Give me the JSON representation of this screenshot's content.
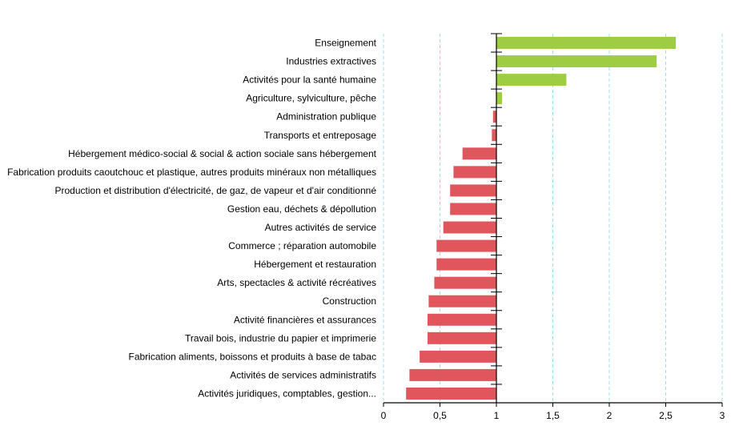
{
  "chart_data": {
    "type": "bar",
    "orientation": "horizontal",
    "title": "",
    "xlabel": "",
    "ylabel": "",
    "baseline": 1,
    "xlim": [
      0,
      3
    ],
    "x_ticks": [
      0,
      0.5,
      1,
      1.5,
      2,
      2.5,
      3
    ],
    "x_tick_labels": [
      "0",
      "0,5",
      "1",
      "1,5",
      "2",
      "2,5",
      "3"
    ],
    "grid": "vertical dashed",
    "legend": "none",
    "colors": {
      "above_baseline": "#9ecd44",
      "below_baseline": "#e0565c",
      "grid": "#9be0f0",
      "axis": "#000000"
    },
    "categories": [
      "Enseignement",
      "Industries extractives",
      "Activités pour la santé humaine",
      "Agriculture, sylviculture, pêche",
      "Administration publique",
      "Transports et entreposage",
      "Hébergement médico-social & social & action sociale sans hébergement",
      "Fabrication produits caoutchouc et plastique, autres produits minéraux non métalliques",
      "Production et distribution d'électricité, de gaz, de vapeur et d'air conditionné",
      "Gestion eau, déchets & dépollution",
      "Autres activités de service",
      "Commerce ; réparation automobile",
      "Hébergement et restauration",
      "Arts, spectacles & activité récréatives",
      "Construction",
      "Activité financières et assurances",
      "Travail bois, industrie du papier et imprimerie",
      "Fabrication aliments, boissons et produits à base de tabac",
      "Activités de services administratifs",
      "Activités juridiques, comptables, gestion..."
    ],
    "values": [
      2.59,
      2.42,
      1.62,
      1.05,
      0.97,
      0.96,
      0.7,
      0.62,
      0.59,
      0.59,
      0.53,
      0.47,
      0.47,
      0.45,
      0.4,
      0.39,
      0.39,
      0.32,
      0.23,
      0.2
    ]
  }
}
